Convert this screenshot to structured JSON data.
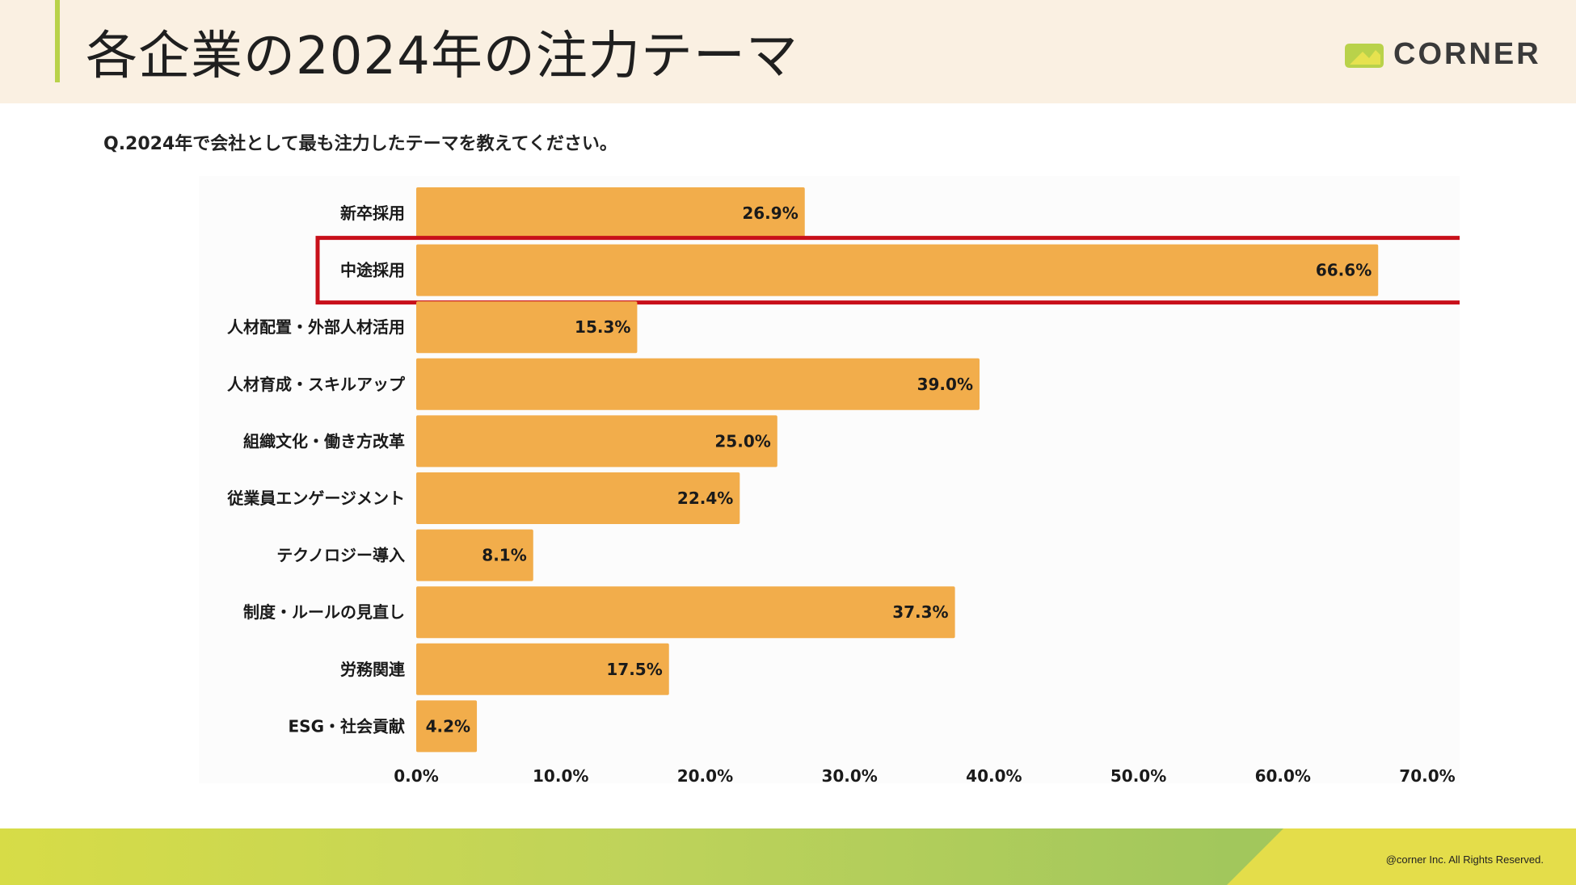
{
  "header": {
    "title": "各企業の2024年の注力テーマ",
    "logo_text": "CORNER"
  },
  "question": "Q.2024年で会社として最も注力したテーマを教えてください。",
  "footer": {
    "copyright": "@corner Inc. All Rights Reserved."
  },
  "colors": {
    "bar": "#f2ad4b",
    "highlight": "#c8101a",
    "accent": "#b9d24a"
  },
  "chart_data": {
    "type": "bar",
    "orientation": "horizontal",
    "categories": [
      "新卒採用",
      "中途採用",
      "人材配置・外部人材活用",
      "人材育成・スキルアップ",
      "組織文化・働き方改革",
      "従業員エンゲージメント",
      "テクノロジー導入",
      "制度・ルールの見直し",
      "労務関連",
      "ESG・社会貢献"
    ],
    "values": [
      26.9,
      66.6,
      15.3,
      39.0,
      25.0,
      22.4,
      8.1,
      37.3,
      17.5,
      4.2
    ],
    "value_labels": [
      "26.9%",
      "66.6%",
      "15.3%",
      "39.0%",
      "25.0%",
      "22.4%",
      "8.1%",
      "37.3%",
      "17.5%",
      "4.2%"
    ],
    "x_ticks": [
      0,
      10,
      20,
      30,
      40,
      50,
      60,
      70
    ],
    "x_tick_labels": [
      "0.0%",
      "10.0%",
      "20.0%",
      "30.0%",
      "40.0%",
      "50.0%",
      "60.0%",
      "70.0%"
    ],
    "xlim": [
      0,
      70
    ],
    "highlighted_category": "中途採用",
    "title": "",
    "xlabel": "",
    "ylabel": "",
    "grid": false
  }
}
